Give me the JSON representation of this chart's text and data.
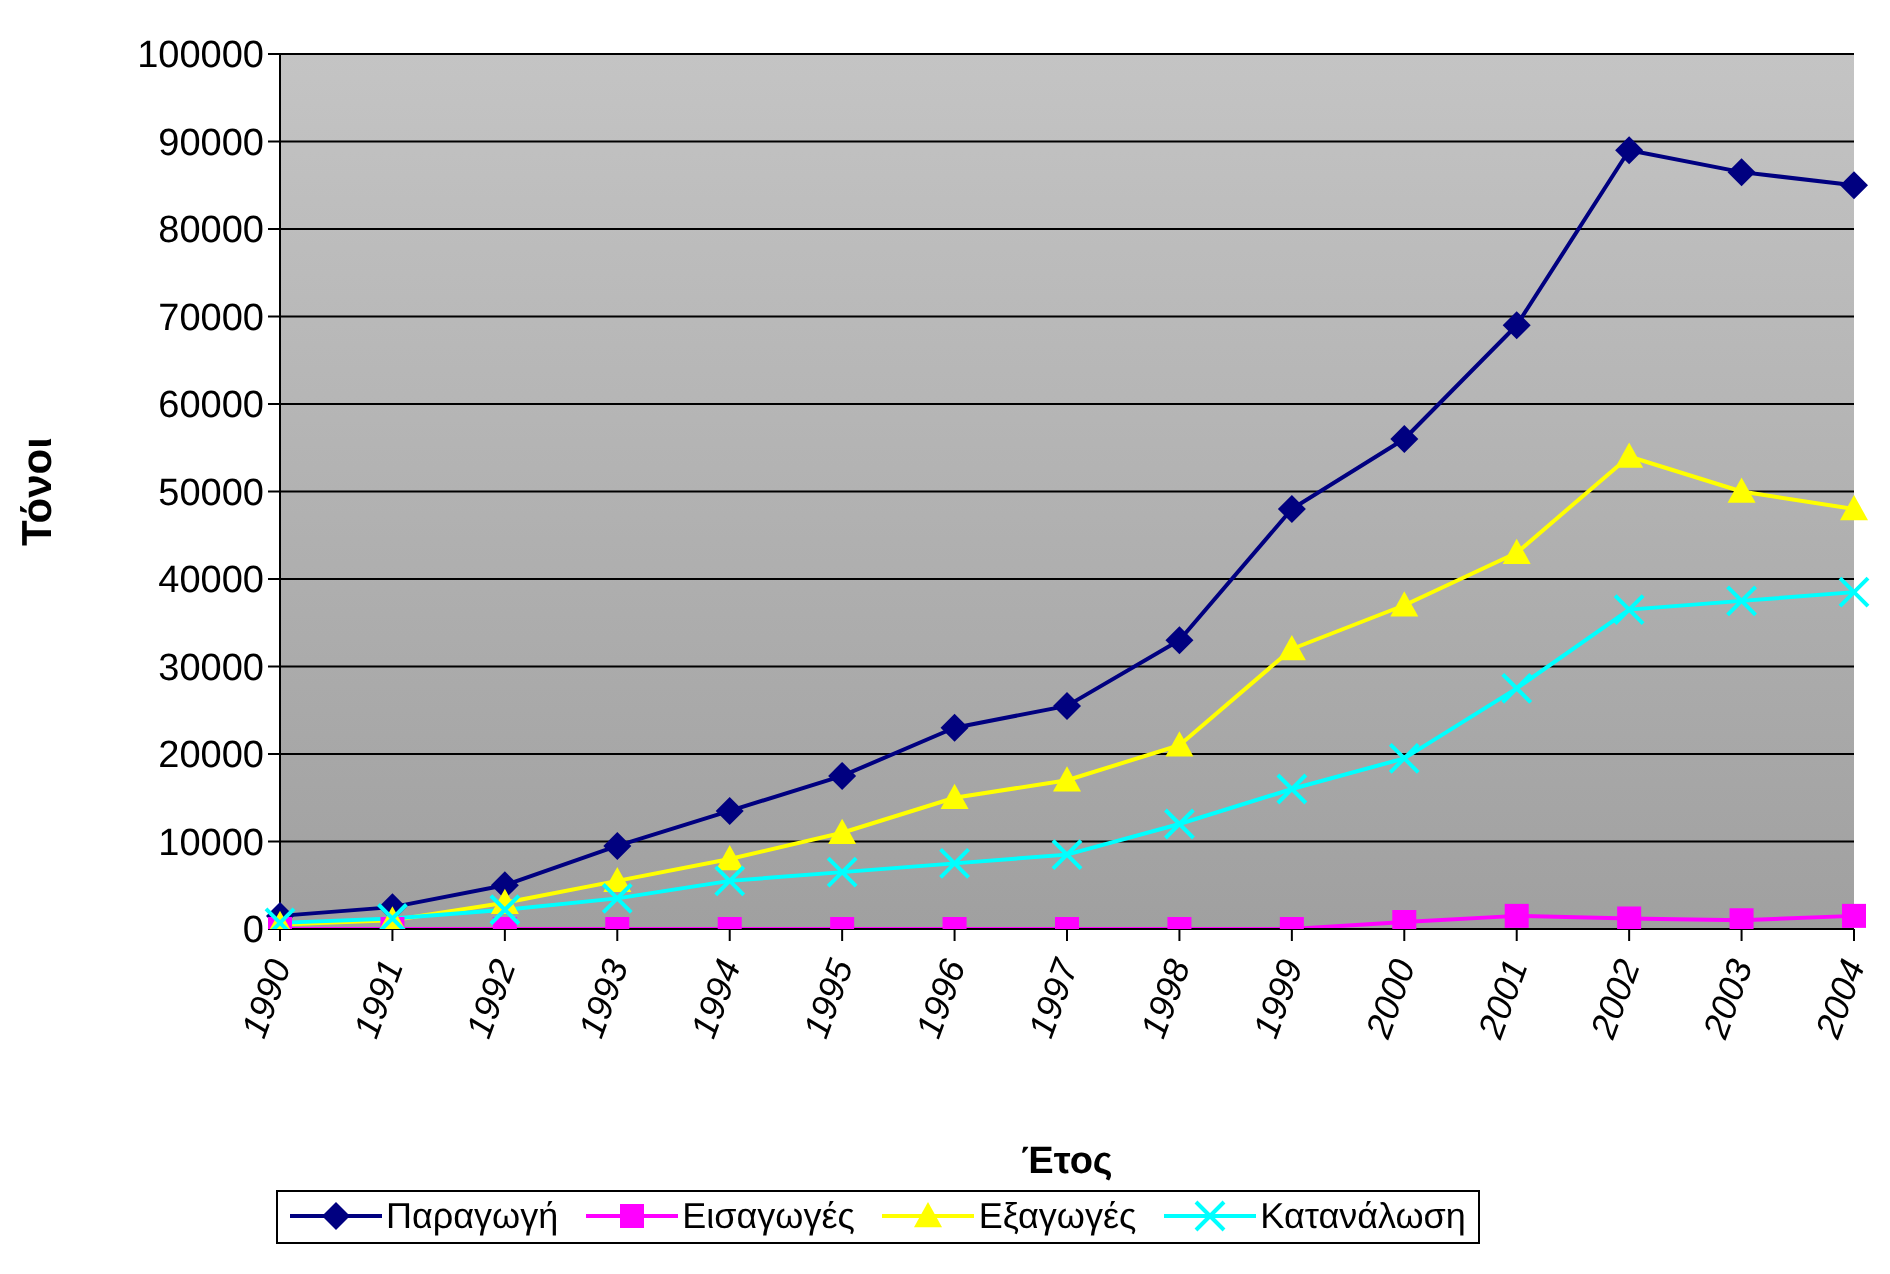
{
  "chart_data": {
    "type": "line",
    "xlabel": "Έτος",
    "ylabel": "Τόνοι",
    "categories": [
      "1990",
      "1991",
      "1992",
      "1993",
      "1994",
      "1995",
      "1996",
      "1997",
      "1998",
      "1999",
      "2000",
      "2001",
      "2002",
      "2003",
      "2004"
    ],
    "ylim": [
      0,
      100000
    ],
    "yticks": [
      0,
      10000,
      20000,
      30000,
      40000,
      50000,
      60000,
      70000,
      80000,
      90000,
      100000
    ],
    "grid": "y",
    "legend": "bottom",
    "series": [
      {
        "name": "Παραγωγή",
        "color": "#000080",
        "marker": "diamond",
        "values": [
          1500,
          2500,
          5000,
          9500,
          13500,
          17500,
          23000,
          25500,
          33000,
          48000,
          56000,
          69000,
          89000,
          86500,
          85000
        ]
      },
      {
        "name": "Εισαγωγές",
        "color": "#ff00ff",
        "marker": "square",
        "values": [
          0,
          0,
          0,
          0,
          0,
          0,
          0,
          0,
          0,
          0,
          800,
          1500,
          1200,
          1000,
          1500
        ]
      },
      {
        "name": "Εξαγωγές",
        "color": "#ffff00",
        "marker": "triangle",
        "values": [
          500,
          1000,
          3000,
          5500,
          8000,
          11000,
          15000,
          17000,
          21000,
          32000,
          37000,
          43000,
          54000,
          50000,
          48000
        ]
      },
      {
        "name": "Κατανάλωση",
        "color": "#00ffff",
        "marker": "cross",
        "values": [
          700,
          1200,
          2200,
          3500,
          5500,
          6500,
          7500,
          8500,
          12000,
          16000,
          19500,
          27500,
          36500,
          37500,
          38500
        ]
      }
    ]
  }
}
